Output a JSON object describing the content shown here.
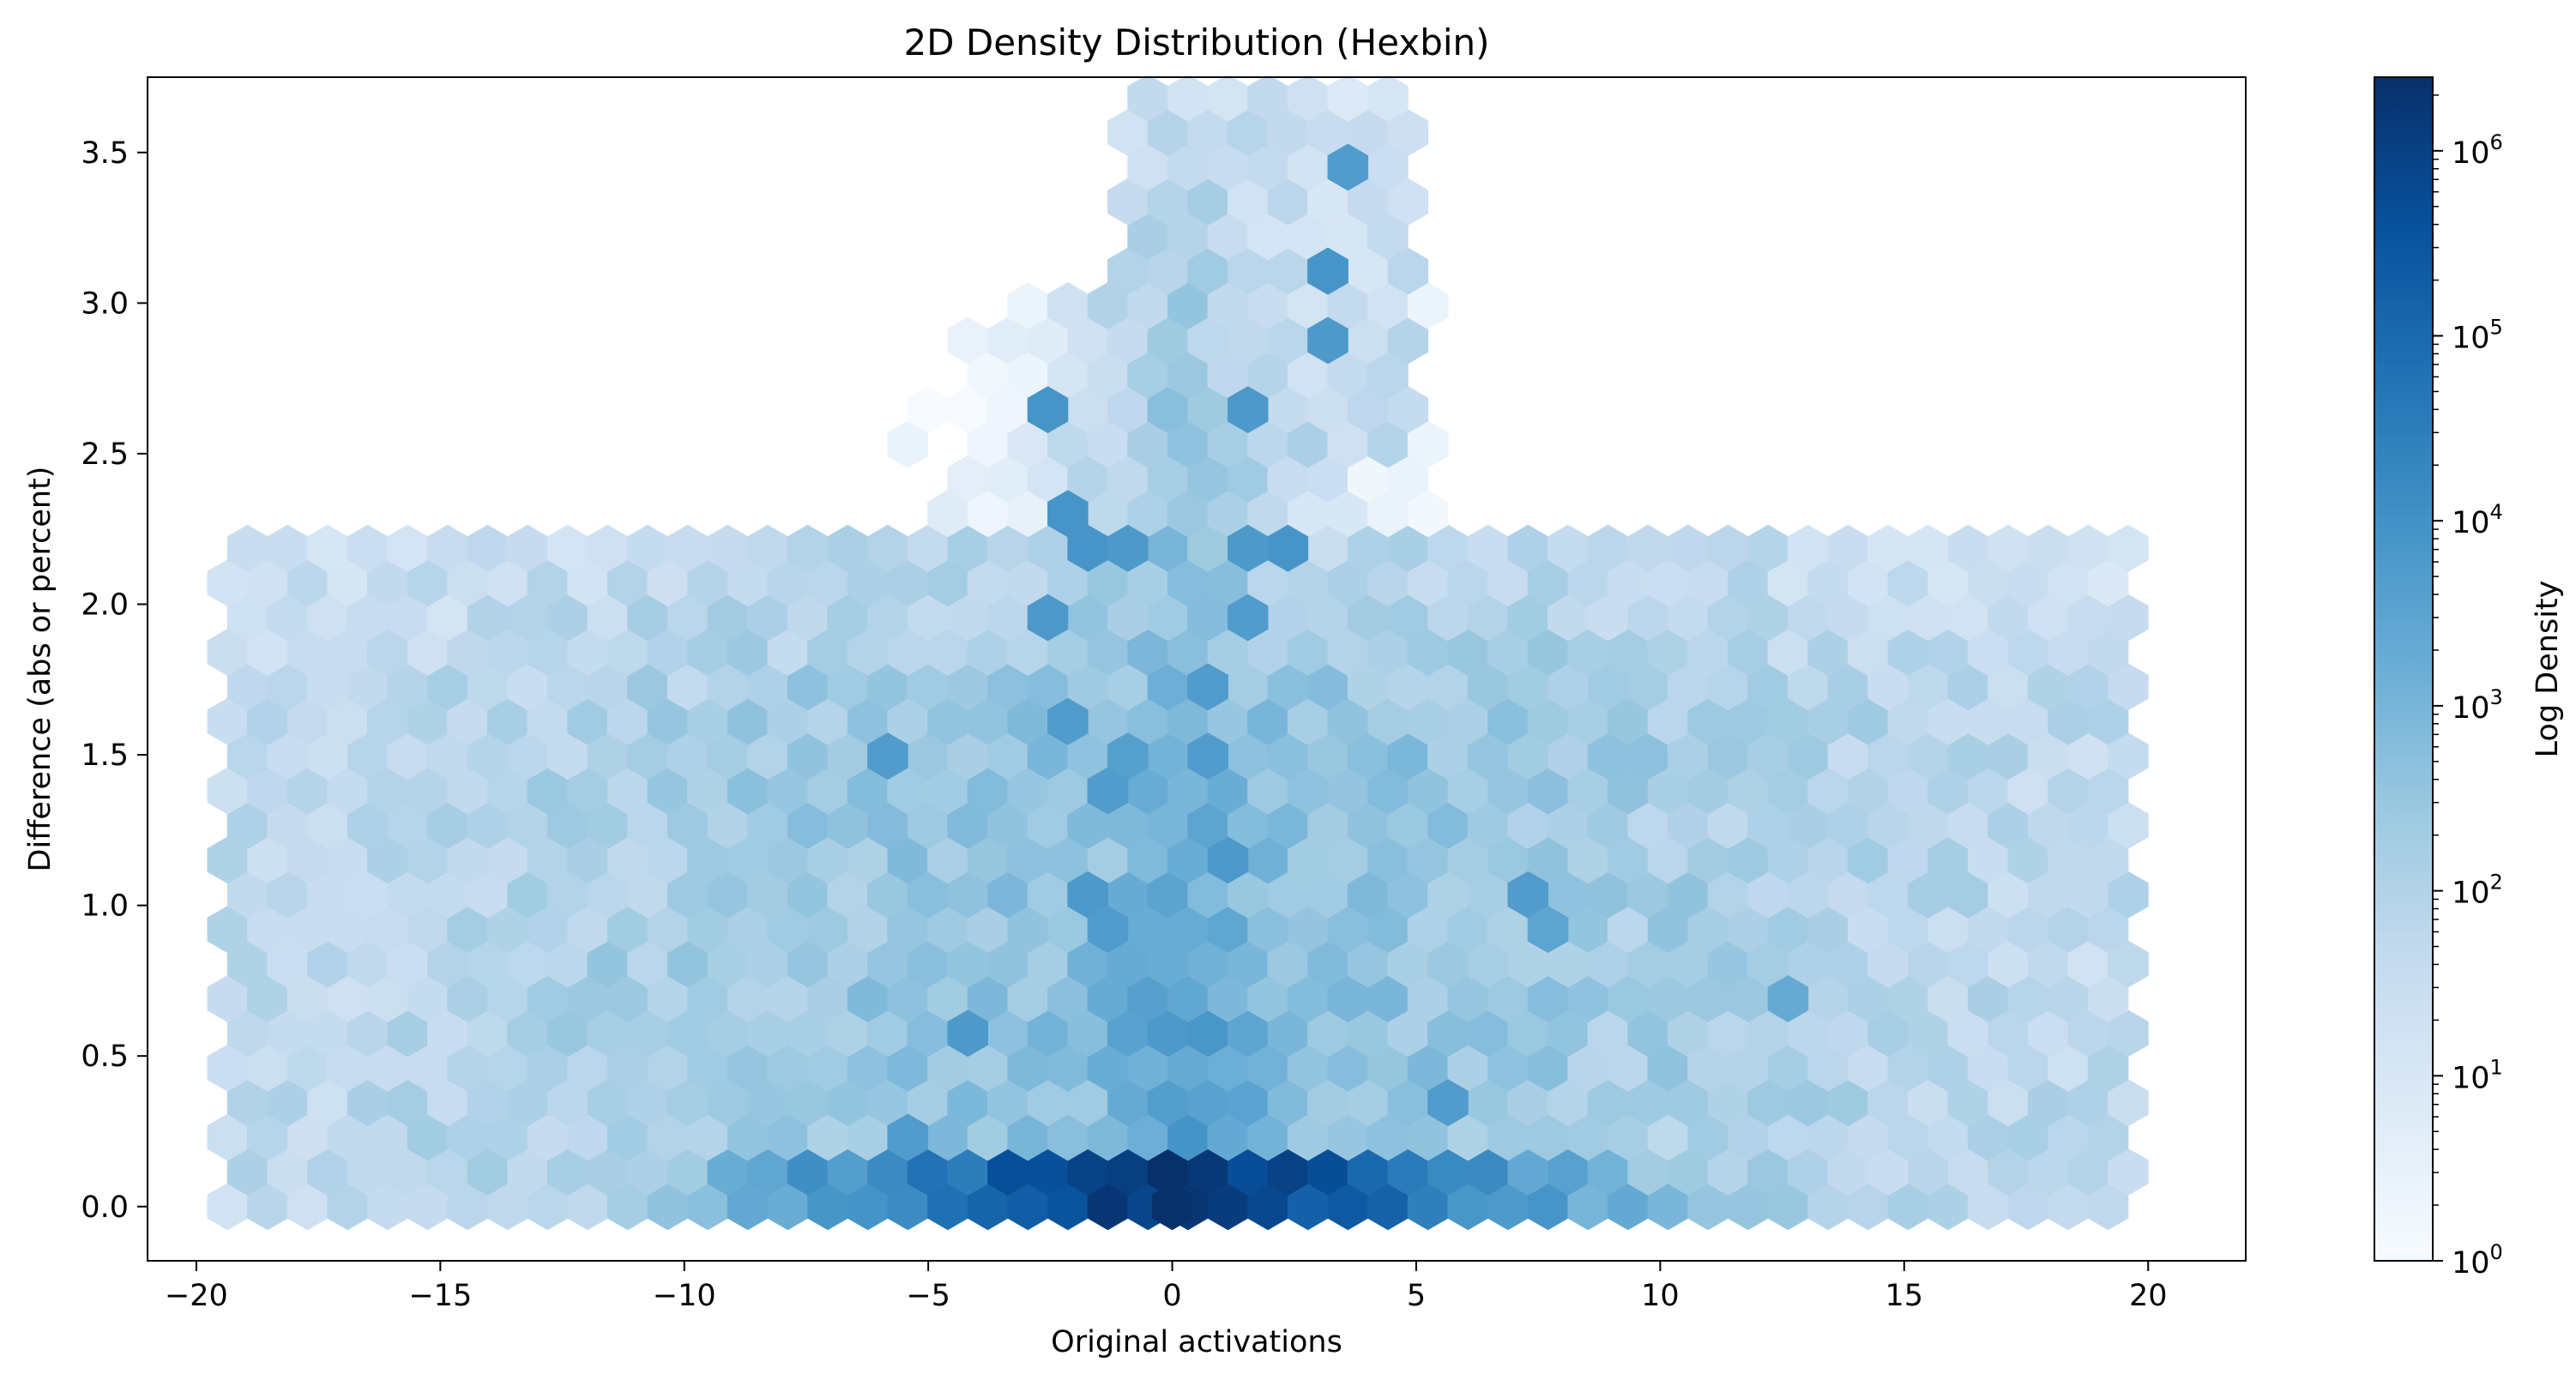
{
  "chart_data": {
    "type": "heatmap",
    "subtype": "hexbin",
    "title": "2D Density Distribution (Hexbin)",
    "xlabel": "Original activations",
    "ylabel": "Difference (abs or percent)",
    "xlim": [
      -21,
      22
    ],
    "ylim": [
      -0.18,
      3.75
    ],
    "xticks": [
      -20,
      -15,
      -10,
      -5,
      0,
      5,
      10,
      15,
      20
    ],
    "xtick_labels": [
      "−20",
      "−15",
      "−10",
      "−5",
      "0",
      "5",
      "10",
      "15",
      "20"
    ],
    "yticks": [
      0.0,
      0.5,
      1.0,
      1.5,
      2.0,
      2.5,
      3.0,
      3.5
    ],
    "ytick_labels": [
      "0.0",
      "0.5",
      "1.0",
      "1.5",
      "2.0",
      "2.5",
      "3.0",
      "3.5"
    ],
    "grid": false,
    "colormap": "Blues",
    "color_scale": "log",
    "colorbar": {
      "label": "Log Density",
      "range": [
        1,
        2500000
      ],
      "ticks": [
        {
          "value": 1,
          "base": "10",
          "exp": "0"
        },
        {
          "value": 10,
          "base": "10",
          "exp": "1"
        },
        {
          "value": 100,
          "base": "10",
          "exp": "2"
        },
        {
          "value": 1000,
          "base": "10",
          "exp": "3"
        },
        {
          "value": 10000,
          "base": "10",
          "exp": "4"
        },
        {
          "value": 100000,
          "base": "10",
          "exp": "5"
        },
        {
          "value": 1000000,
          "base": "10",
          "exp": "6"
        }
      ]
    },
    "density_description": {
      "peak": {
        "x": 0,
        "y": 0,
        "count": 2500000
      },
      "notes": "Counts approximate; densest along y=0 and near x=0; broad envelope x in [-20,20], y up to ~3.6 near x in [0,4]."
    },
    "hotspots": [
      {
        "x": 3.5,
        "y": 3.45,
        "count": 5000
      },
      {
        "x": 2.8,
        "y": 3.1,
        "count": 5000
      },
      {
        "x": 3.3,
        "y": 3.05,
        "count": 8000
      },
      {
        "x": 3.5,
        "y": 2.85,
        "count": 6000
      },
      {
        "x": -2.8,
        "y": 2.6,
        "count": 8000
      },
      {
        "x": 1.9,
        "y": 2.6,
        "count": 6000
      },
      {
        "x": -2.3,
        "y": 2.25,
        "count": 8000
      },
      {
        "x": -2.0,
        "y": 2.2,
        "count": 8000
      },
      {
        "x": -1.2,
        "y": 2.2,
        "count": 6000
      },
      {
        "x": 1.5,
        "y": 2.15,
        "count": 6000
      },
      {
        "x": 2.2,
        "y": 2.15,
        "count": 8000
      },
      {
        "x": 1.5,
        "y": 1.9,
        "count": 5000
      },
      {
        "x": -2.4,
        "y": 1.9,
        "count": 6000
      },
      {
        "x": 0.6,
        "y": 1.75,
        "count": 5000
      },
      {
        "x": -2.0,
        "y": 1.65,
        "count": 5000
      },
      {
        "x": 1.1,
        "y": 1.7,
        "count": 5000
      },
      {
        "x": -5.5,
        "y": 1.5,
        "count": 5000
      },
      {
        "x": -1.2,
        "y": 1.55,
        "count": 4000
      },
      {
        "x": 0.8,
        "y": 1.5,
        "count": 5000
      },
      {
        "x": -1.2,
        "y": 1.4,
        "count": 4000
      },
      {
        "x": -0.5,
        "y": 1.45,
        "count": 4000
      },
      {
        "x": -1.7,
        "y": 1.35,
        "count": 5000
      },
      {
        "x": 1.5,
        "y": 1.2,
        "count": 6000
      },
      {
        "x": -1.7,
        "y": 1.0,
        "count": 6000
      },
      {
        "x": -1.2,
        "y": 0.95,
        "count": 5000
      },
      {
        "x": 7.4,
        "y": 1.05,
        "count": 5000
      },
      {
        "x": 7.4,
        "y": 0.9,
        "count": 3000
      },
      {
        "x": 12.3,
        "y": 0.7,
        "count": 2000
      },
      {
        "x": -4.4,
        "y": 0.52,
        "count": 6000
      },
      {
        "x": 5.4,
        "y": 0.32,
        "count": 5000
      },
      {
        "x": -5.5,
        "y": 0.2,
        "count": 5000
      }
    ]
  }
}
